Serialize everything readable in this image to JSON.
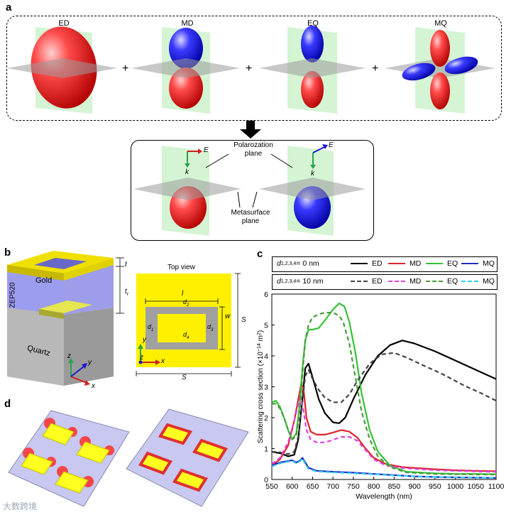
{
  "panel_a": {
    "label": "a",
    "modes": [
      "ED",
      "MD",
      "EQ",
      "MQ"
    ],
    "plus": "+",
    "polarization_label": "Polarozation plane",
    "metasurface_label": "Metasurface plane",
    "E": "E",
    "k": "k"
  },
  "panel_b": {
    "label": "b",
    "gold": "Gold",
    "zep": "ZEP520",
    "quartz": "Quartz",
    "t": "t",
    "tr": "t",
    "tr_sub": "r",
    "axes": {
      "x": "x",
      "y": "y",
      "z": "z"
    },
    "top_view_title": "Top view",
    "l": "l",
    "w": "w",
    "S": "S",
    "d": "d",
    "d_subs": [
      "1",
      "2",
      "3",
      "4"
    ]
  },
  "panel_c": {
    "label": "c",
    "legend1_title": "d",
    "legend1_sub": "1,2,3,4",
    "legend1_value": " = 0 nm",
    "legend2_title": "d",
    "legend2_sub": "1,2,3,4",
    "legend2_value": " = 10 nm",
    "legend_entries": [
      "ED",
      "MD",
      "EQ",
      "MQ"
    ]
  },
  "panel_d": {
    "label": "d"
  },
  "watermark": "大数跨境",
  "colors": {
    "ED": "#000000",
    "MD": "#d9262b",
    "EQ": "#36c236",
    "MQ": "#1f2fbf",
    "ED_dash": "#444444",
    "MD_dash": "#e040e0",
    "EQ_dash": "#4a9a3a",
    "MQ_dash": "#33ccee"
  },
  "chart_data": {
    "type": "line",
    "xlabel": "Wavelength (nm)",
    "ylabel": "Scattering cross section (×10",
    "ylabel_exp": "−14",
    "ylabel_unit": " m",
    "ylabel_unit_exp": "2",
    "ylabel_end": ")",
    "xlim": [
      550,
      1100
    ],
    "ylim": [
      0,
      6
    ],
    "xticks": [
      550,
      600,
      650,
      700,
      750,
      800,
      850,
      900,
      950,
      1000,
      1050,
      1100
    ],
    "yticks": [
      0,
      1,
      2,
      3,
      4,
      5,
      6
    ],
    "series": [
      {
        "name": "ED",
        "group": "0 nm",
        "style": "solid",
        "color": "#000000",
        "x": [
          550,
          570,
          590,
          605,
          615,
          625,
          632,
          640,
          650,
          665,
          680,
          700,
          715,
          730,
          750,
          780,
          810,
          840,
          870,
          900,
          950,
          1000,
          1050,
          1100
        ],
        "y": [
          0.9,
          0.85,
          0.75,
          0.8,
          1.3,
          2.6,
          3.6,
          3.75,
          3.3,
          2.6,
          2.15,
          1.85,
          1.82,
          2.0,
          2.6,
          3.4,
          4.0,
          4.35,
          4.5,
          4.4,
          4.15,
          3.85,
          3.55,
          3.25
        ]
      },
      {
        "name": "MD",
        "group": "0 nm",
        "style": "solid",
        "color": "#d9262b",
        "x": [
          550,
          570,
          590,
          605,
          615,
          622,
          628,
          635,
          645,
          660,
          680,
          700,
          720,
          740,
          760,
          780,
          800,
          830,
          870,
          950,
          1000,
          1050,
          1100
        ],
        "y": [
          0.45,
          0.65,
          1.1,
          1.9,
          2.6,
          3.1,
          2.9,
          2.0,
          1.55,
          1.45,
          1.45,
          1.52,
          1.6,
          1.55,
          1.35,
          1.0,
          0.7,
          0.5,
          0.4,
          0.33,
          0.3,
          0.28,
          0.27
        ]
      },
      {
        "name": "EQ",
        "group": "0 nm",
        "style": "solid",
        "color": "#36c236",
        "x": [
          550,
          560,
          570,
          580,
          590,
          600,
          610,
          618,
          625,
          632,
          640,
          650,
          665,
          680,
          700,
          715,
          728,
          740,
          755,
          770,
          790,
          810,
          840,
          880,
          950,
          1000,
          1050,
          1100
        ],
        "y": [
          2.5,
          2.55,
          2.35,
          2.0,
          1.6,
          1.3,
          1.5,
          2.4,
          3.6,
          4.5,
          4.85,
          4.85,
          4.9,
          5.15,
          5.5,
          5.7,
          5.6,
          5.1,
          4.1,
          2.8,
          1.6,
          0.9,
          0.45,
          0.25,
          0.2,
          0.18,
          0.18,
          0.17
        ]
      },
      {
        "name": "MQ",
        "group": "0 nm",
        "style": "solid",
        "color": "#1f2fbf",
        "x": [
          550,
          570,
          590,
          600,
          610,
          620,
          625,
          632,
          640,
          660,
          700,
          750,
          800,
          850,
          900,
          950,
          1000,
          1050,
          1100
        ],
        "y": [
          0.45,
          0.55,
          0.6,
          0.62,
          0.55,
          0.62,
          0.7,
          0.55,
          0.38,
          0.28,
          0.25,
          0.22,
          0.18,
          0.14,
          0.1,
          0.08,
          0.07,
          0.06,
          0.05
        ]
      },
      {
        "name": "ED",
        "group": "10 nm",
        "style": "dashed",
        "color": "#444444",
        "x": [
          550,
          570,
          590,
          605,
          615,
          625,
          632,
          640,
          650,
          665,
          680,
          700,
          720,
          740,
          760,
          790,
          820,
          850,
          880,
          920,
          970,
          1020,
          1070,
          1100
        ],
        "y": [
          0.9,
          0.88,
          0.82,
          0.9,
          1.4,
          2.5,
          3.35,
          3.55,
          3.25,
          2.9,
          2.65,
          2.5,
          2.5,
          2.75,
          3.2,
          3.75,
          4.05,
          4.1,
          3.95,
          3.7,
          3.4,
          3.05,
          2.75,
          2.55
        ]
      },
      {
        "name": "MD",
        "group": "10 nm",
        "style": "dashed",
        "color": "#e040e0",
        "x": [
          550,
          570,
          590,
          605,
          615,
          620,
          627,
          635,
          645,
          660,
          680,
          700,
          720,
          740,
          760,
          780,
          800,
          830,
          870,
          950,
          1000,
          1050,
          1100
        ],
        "y": [
          0.5,
          0.7,
          1.2,
          1.9,
          2.45,
          2.65,
          2.3,
          1.6,
          1.3,
          1.2,
          1.2,
          1.28,
          1.38,
          1.38,
          1.25,
          0.95,
          0.65,
          0.45,
          0.37,
          0.3,
          0.28,
          0.26,
          0.25
        ]
      },
      {
        "name": "EQ",
        "group": "10 nm",
        "style": "dashed",
        "color": "#4a9a3a",
        "x": [
          550,
          560,
          570,
          580,
          590,
          600,
          610,
          618,
          625,
          632,
          640,
          650,
          665,
          680,
          700,
          715,
          725,
          740,
          755,
          770,
          790,
          810,
          840,
          880,
          950,
          1000,
          1050,
          1100
        ],
        "y": [
          2.45,
          2.45,
          2.3,
          2.0,
          1.6,
          1.3,
          1.4,
          2.2,
          3.4,
          4.5,
          5.0,
          5.25,
          5.35,
          5.4,
          5.4,
          5.3,
          5.1,
          4.4,
          3.3,
          2.2,
          1.3,
          0.75,
          0.4,
          0.23,
          0.18,
          0.17,
          0.16,
          0.16
        ]
      },
      {
        "name": "MQ",
        "group": "10 nm",
        "style": "dashed",
        "color": "#33ccee",
        "x": [
          550,
          570,
          590,
          600,
          610,
          620,
          625,
          632,
          640,
          660,
          700,
          750,
          800,
          850,
          900,
          950,
          1000,
          1050,
          1100
        ],
        "y": [
          0.42,
          0.52,
          0.58,
          0.6,
          0.52,
          0.6,
          0.68,
          0.5,
          0.34,
          0.26,
          0.23,
          0.2,
          0.17,
          0.13,
          0.1,
          0.08,
          0.07,
          0.06,
          0.05
        ]
      }
    ]
  }
}
